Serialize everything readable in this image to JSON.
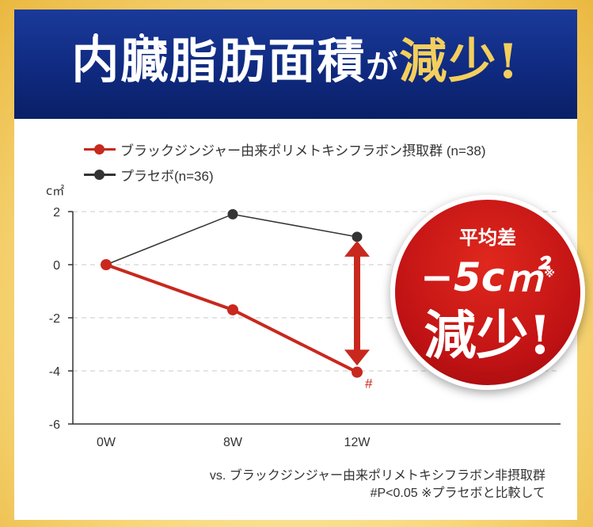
{
  "banner": {
    "title_main": "内臓脂肪面積",
    "title_particle": "が",
    "title_emph": "減少!"
  },
  "legend": [
    {
      "label": "ブラックジンジャー由来ポリメトキシフラボン摂取群 (n=38)",
      "color": "#c8281e"
    },
    {
      "label": "プラセボ(n=36)",
      "color": "#333333"
    }
  ],
  "chart_data": {
    "type": "line",
    "ylabel": "c㎡",
    "ylim": [
      -6,
      2
    ],
    "yticks": [
      2,
      0,
      -2,
      -4,
      -6
    ],
    "ytick_labels": [
      "2",
      "0",
      "-2",
      "-4",
      "-6"
    ],
    "categories": [
      "0W",
      "8W",
      "12W"
    ],
    "grid": "dashed horizontal at each y tick",
    "series": [
      {
        "name": "ブラックジンジャー由来ポリメトキシフラボン摂取群 (n=38)",
        "values": [
          0,
          -1.7,
          -4.05
        ],
        "color": "#c8281e"
      },
      {
        "name": "プラセボ(n=36)",
        "values": [
          0,
          1.9,
          1.05
        ],
        "color": "#333333"
      }
    ],
    "annotations": [
      {
        "text": "#",
        "category": "12W",
        "series": "ブラックジンジャー由来ポリメトキシフラボン摂取群 (n=38)"
      }
    ],
    "difference_arrow": {
      "category": "12W",
      "from": 0.9,
      "to": -3.8,
      "color": "#c8281e"
    }
  },
  "badge": {
    "line1": "平均差",
    "line2": "−5c㎡",
    "line2_note": "※",
    "line3": "減少!"
  },
  "footnote": {
    "line1": "vs. ブラックジンジャー由来ポリメトキシフラボン非摂取群",
    "line2": "#P<0.05 ※プラセボと比較して"
  }
}
